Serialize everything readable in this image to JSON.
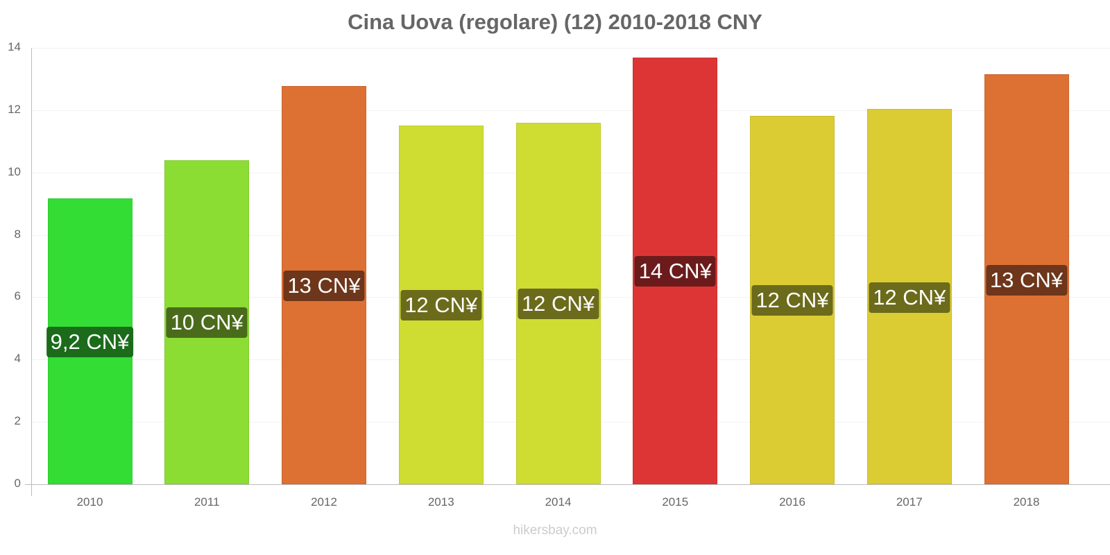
{
  "title": "Cina Uova (regolare) (12) 2010-2018 CNY",
  "watermark": "hikersbay.com",
  "y_ticks": [
    "0",
    "2",
    "4",
    "6",
    "8",
    "10",
    "12",
    "14"
  ],
  "x_ticks": [
    "2010",
    "2011",
    "2012",
    "2013",
    "2014",
    "2015",
    "2016",
    "2017",
    "2018"
  ],
  "bar_labels": [
    "9,2 CN¥",
    "10 CN¥",
    "13 CN¥",
    "12 CN¥",
    "12 CN¥",
    "14 CN¥",
    "12 CN¥",
    "12 CN¥",
    "13 CN¥"
  ],
  "colors": {
    "bars": [
      "#33dd33",
      "#8bdd33",
      "#dd7033",
      "#cfdd33",
      "#cfdd33",
      "#dd3535",
      "#dccc33",
      "#dccc33",
      "#dd7033"
    ],
    "label_bgs": [
      "#1b6b1b",
      "#4a6b1b",
      "#6e361b",
      "#6b6b1b",
      "#6b6b1b",
      "#6b1b1b",
      "#6b6b1b",
      "#6b6b1b",
      "#6e361b"
    ],
    "text": "#666666",
    "watermark": "#cccccc"
  },
  "chart_data": {
    "type": "bar",
    "title": "Cina Uova (regolare) (12) 2010-2018 CNY",
    "xlabel": "",
    "ylabel": "",
    "categories": [
      "2010",
      "2011",
      "2012",
      "2013",
      "2014",
      "2015",
      "2016",
      "2017",
      "2018"
    ],
    "values": [
      9.17,
      10.4,
      12.78,
      11.51,
      11.6,
      13.69,
      11.82,
      12.04,
      13.15
    ],
    "data_labels": [
      "9,2 CN¥",
      "10 CN¥",
      "13 CN¥",
      "12 CN¥",
      "12 CN¥",
      "14 CN¥",
      "12 CN¥",
      "12 CN¥",
      "13 CN¥"
    ],
    "ylim": [
      0,
      14
    ],
    "yticks": [
      0,
      2,
      4,
      6,
      8,
      10,
      12,
      14
    ],
    "grid": true,
    "legend": "none",
    "unit": "CNY"
  }
}
